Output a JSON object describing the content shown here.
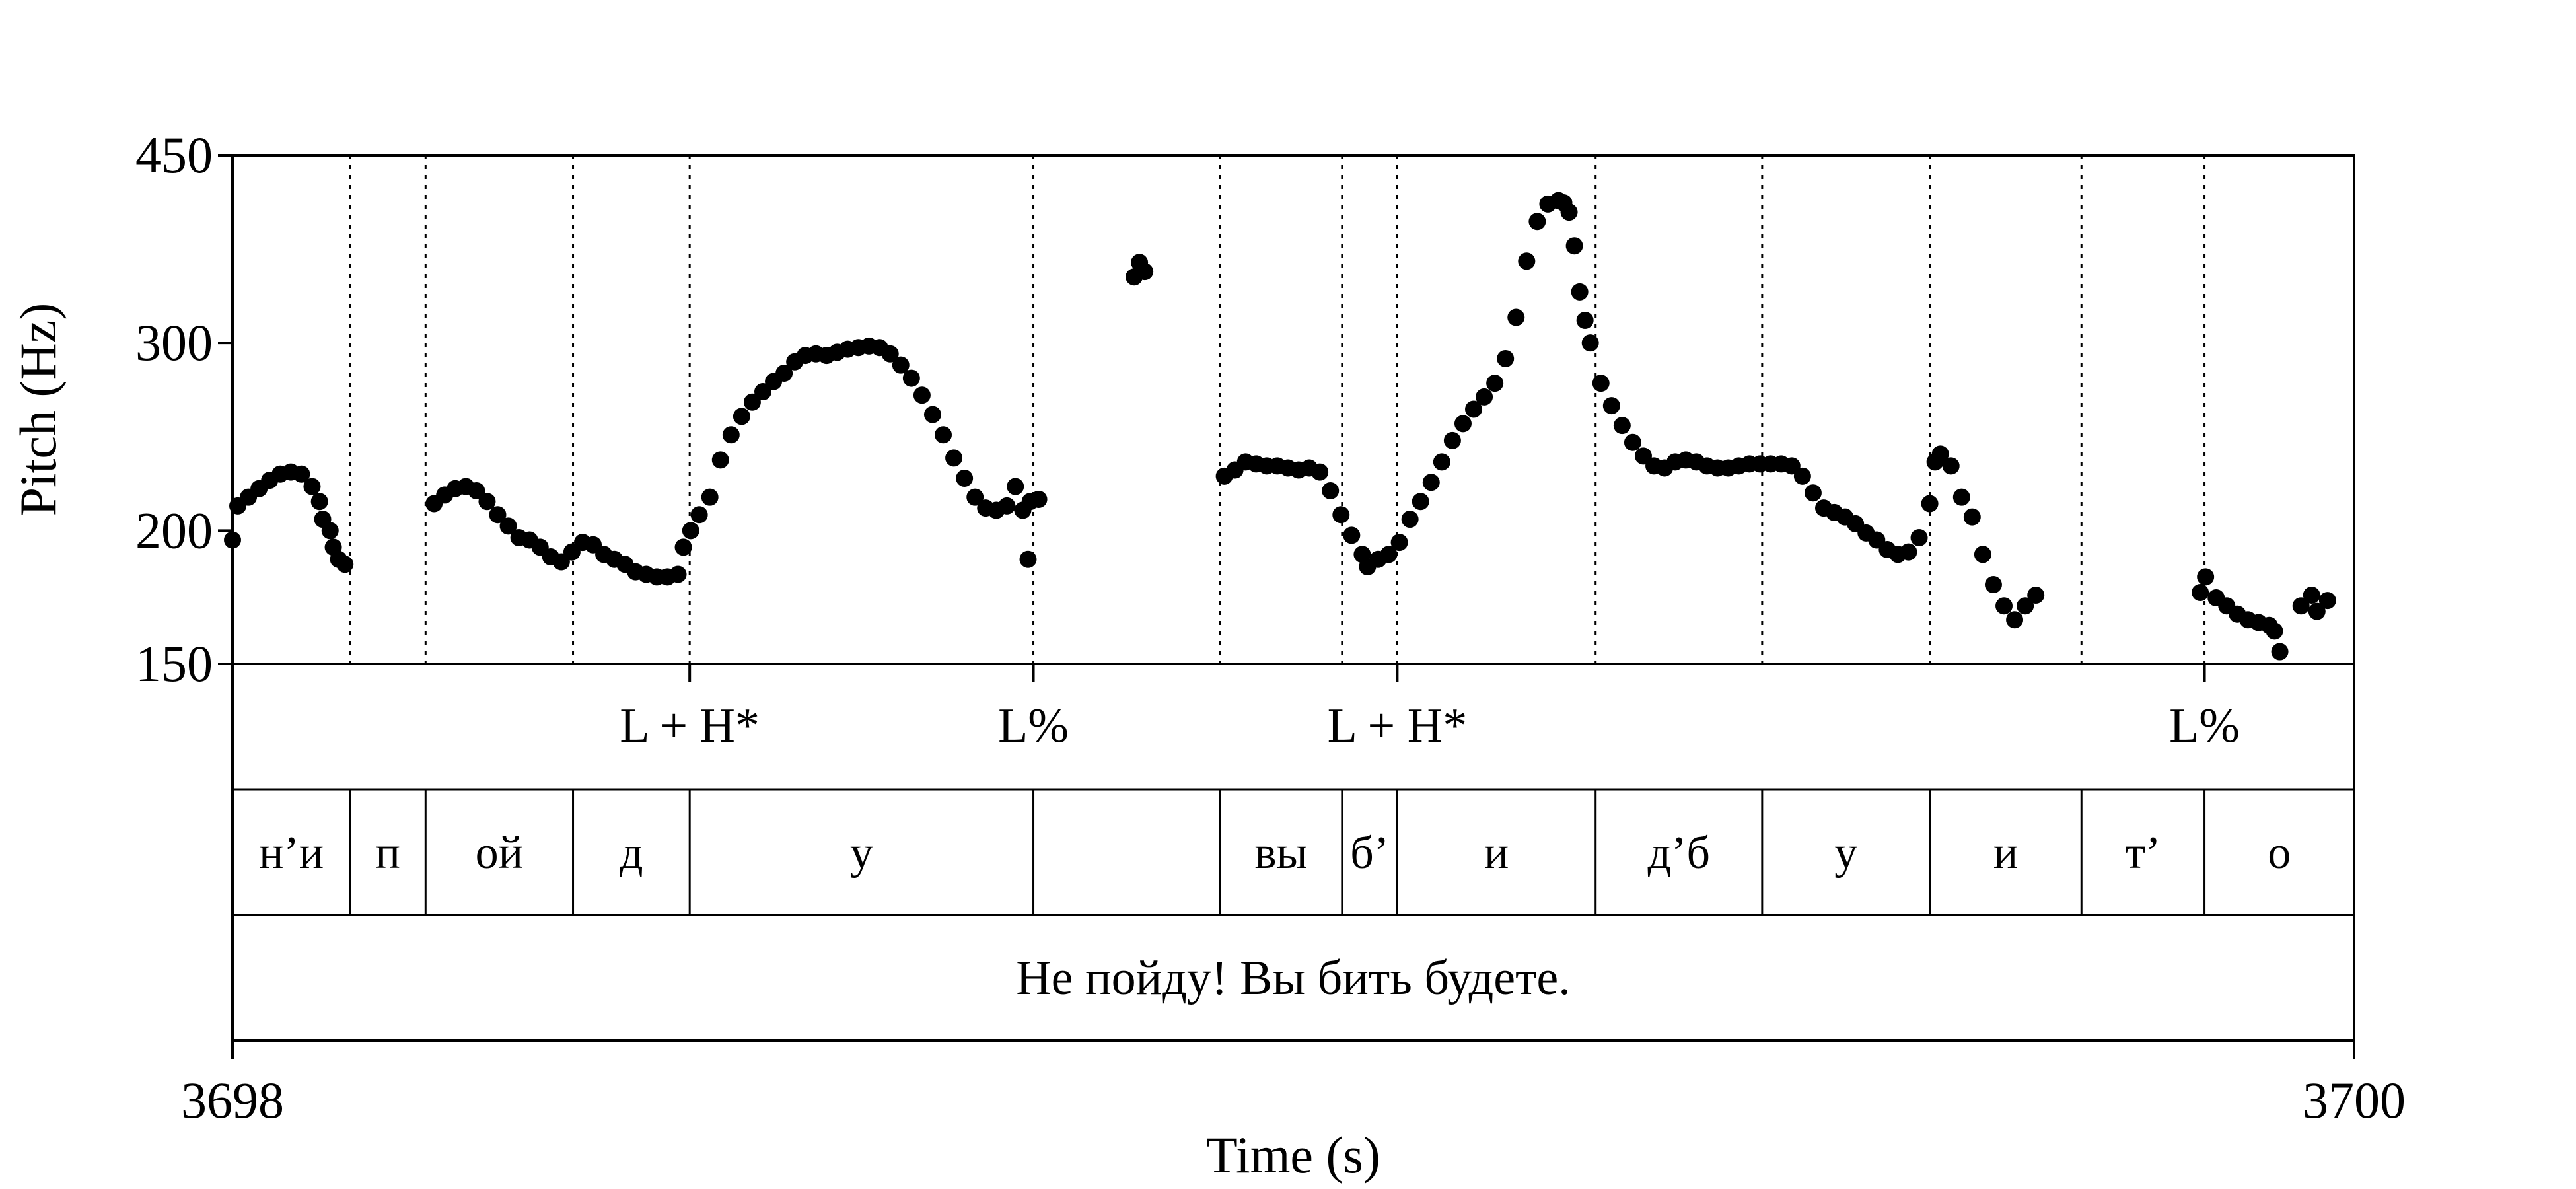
{
  "chart_data": {
    "type": "scatter",
    "xlabel": "Time (s)",
    "ylabel": "Pitch (Hz)",
    "xlim": [
      3698,
      3700
    ],
    "ylim": [
      150,
      450
    ],
    "y_scale": "log",
    "x_ticks": [
      "3698",
      "3700"
    ],
    "y_ticks": [
      {
        "value": 150,
        "label": "150"
      },
      {
        "value": 200,
        "label": "200"
      },
      {
        "value": 300,
        "label": "300"
      },
      {
        "value": 450,
        "label": "450"
      }
    ],
    "marker_color": "#000000",
    "segment_boundaries": [
      3698.111,
      3698.182,
      3698.321,
      3698.431,
      3698.755,
      3698.931,
      3699.046,
      3699.098,
      3699.285,
      3699.442,
      3699.6,
      3699.743,
      3699.859
    ],
    "tones": [
      {
        "t": 3698.431,
        "label": "L + H*"
      },
      {
        "t": 3698.755,
        "label": "L%"
      },
      {
        "t": 3699.098,
        "label": "L + H*"
      },
      {
        "t": 3699.859,
        "label": "L%"
      }
    ],
    "segments": [
      {
        "start": 3698.0,
        "end": 3698.111,
        "label": "н’и"
      },
      {
        "start": 3698.111,
        "end": 3698.182,
        "label": "п"
      },
      {
        "start": 3698.182,
        "end": 3698.321,
        "label": "ой"
      },
      {
        "start": 3698.321,
        "end": 3698.431,
        "label": "д"
      },
      {
        "start": 3698.431,
        "end": 3698.755,
        "label": "у"
      },
      {
        "start": 3698.755,
        "end": 3698.931,
        "label": ""
      },
      {
        "start": 3698.931,
        "end": 3699.046,
        "label": "вы"
      },
      {
        "start": 3699.046,
        "end": 3699.098,
        "label": "б’"
      },
      {
        "start": 3699.098,
        "end": 3699.285,
        "label": "и"
      },
      {
        "start": 3699.285,
        "end": 3699.442,
        "label": "д’б"
      },
      {
        "start": 3699.442,
        "end": 3699.6,
        "label": "у"
      },
      {
        "start": 3699.6,
        "end": 3699.743,
        "label": "и"
      },
      {
        "start": 3699.743,
        "end": 3699.859,
        "label": "т’"
      },
      {
        "start": 3699.859,
        "end": 3700.0,
        "label": "о"
      }
    ],
    "sentence": "Не пойду! Вы бить будете.",
    "contours": [
      [
        [
          3698.0,
          196
        ],
        [
          3698.005,
          211
        ],
        [
          3698.015,
          215
        ],
        [
          3698.025,
          219
        ],
        [
          3698.035,
          223
        ],
        [
          3698.045,
          226
        ],
        [
          3698.055,
          227
        ],
        [
          3698.065,
          226
        ],
        [
          3698.075,
          220
        ],
        [
          3698.082,
          213
        ],
        [
          3698.085,
          205
        ],
        [
          3698.092,
          200
        ],
        [
          3698.095,
          193
        ],
        [
          3698.1,
          188
        ],
        [
          3698.106,
          186
        ]
      ],
      [
        [
          3698.19,
          212
        ],
        [
          3698.2,
          216
        ],
        [
          3698.21,
          219
        ],
        [
          3698.22,
          220
        ],
        [
          3698.23,
          218
        ],
        [
          3698.24,
          213
        ],
        [
          3698.25,
          207
        ],
        [
          3698.26,
          202
        ],
        [
          3698.27,
          197
        ],
        [
          3698.28,
          196
        ],
        [
          3698.29,
          193
        ],
        [
          3698.3,
          189
        ],
        [
          3698.31,
          187
        ],
        [
          3698.32,
          191
        ],
        [
          3698.33,
          195
        ],
        [
          3698.34,
          194
        ],
        [
          3698.35,
          190
        ],
        [
          3698.36,
          188
        ],
        [
          3698.37,
          186
        ],
        [
          3698.38,
          183
        ],
        [
          3698.39,
          182
        ],
        [
          3698.4,
          181
        ],
        [
          3698.41,
          181
        ],
        [
          3698.42,
          182
        ]
      ],
      [
        [
          3698.425,
          193
        ],
        [
          3698.432,
          200
        ],
        [
          3698.44,
          207
        ],
        [
          3698.45,
          215
        ],
        [
          3698.46,
          233
        ],
        [
          3698.47,
          246
        ],
        [
          3698.48,
          256
        ],
        [
          3698.49,
          264
        ],
        [
          3698.5,
          270
        ],
        [
          3698.51,
          276
        ],
        [
          3698.52,
          281
        ],
        [
          3698.53,
          288
        ],
        [
          3698.54,
          292
        ],
        [
          3698.55,
          293
        ],
        [
          3698.56,
          292
        ],
        [
          3698.57,
          294
        ],
        [
          3698.58,
          296
        ],
        [
          3698.59,
          297
        ],
        [
          3698.6,
          298
        ],
        [
          3698.61,
          297
        ],
        [
          3698.62,
          293
        ],
        [
          3698.63,
          286
        ],
        [
          3698.64,
          278
        ],
        [
          3698.65,
          268
        ],
        [
          3698.66,
          257
        ],
        [
          3698.67,
          246
        ],
        [
          3698.68,
          234
        ],
        [
          3698.69,
          224
        ],
        [
          3698.7,
          215
        ],
        [
          3698.71,
          210
        ],
        [
          3698.72,
          209
        ],
        [
          3698.73,
          211
        ],
        [
          3698.738,
          220
        ],
        [
          3698.745,
          209
        ],
        [
          3698.752,
          213
        ],
        [
          3698.76,
          214
        ]
      ],
      [
        [
          3698.75,
          188
        ]
      ],
      [
        [
          3698.85,
          346
        ],
        [
          3698.855,
          357
        ],
        [
          3698.86,
          350
        ]
      ],
      [
        [
          3698.935,
          225
        ],
        [
          3698.945,
          228
        ],
        [
          3698.955,
          232
        ],
        [
          3698.965,
          231
        ],
        [
          3698.975,
          230
        ],
        [
          3698.985,
          230
        ],
        [
          3698.995,
          229
        ],
        [
          3699.005,
          228
        ],
        [
          3699.015,
          229
        ],
        [
          3699.025,
          227
        ],
        [
          3699.035,
          218
        ],
        [
          3699.045,
          207
        ],
        [
          3699.055,
          198
        ],
        [
          3699.065,
          190
        ],
        [
          3699.07,
          185
        ],
        [
          3699.08,
          188
        ],
        [
          3699.09,
          190
        ],
        [
          3699.1,
          195
        ],
        [
          3699.11,
          205
        ],
        [
          3699.12,
          213
        ],
        [
          3699.13,
          222
        ],
        [
          3699.14,
          232
        ],
        [
          3699.15,
          243
        ],
        [
          3699.16,
          252
        ],
        [
          3699.17,
          260
        ],
        [
          3699.18,
          267
        ],
        [
          3699.19,
          275
        ],
        [
          3699.2,
          290
        ],
        [
          3699.21,
          317
        ],
        [
          3699.22,
          358
        ],
        [
          3699.23,
          390
        ],
        [
          3699.24,
          405
        ],
        [
          3699.25,
          408
        ],
        [
          3699.255,
          406
        ],
        [
          3699.26,
          398
        ],
        [
          3699.265,
          370
        ],
        [
          3699.27,
          335
        ],
        [
          3699.275,
          315
        ],
        [
          3699.28,
          300
        ],
        [
          3699.29,
          275
        ],
        [
          3699.3,
          262
        ],
        [
          3699.31,
          251
        ],
        [
          3699.32,
          242
        ],
        [
          3699.33,
          235
        ],
        [
          3699.34,
          230
        ],
        [
          3699.35,
          229
        ],
        [
          3699.36,
          232
        ],
        [
          3699.37,
          233
        ],
        [
          3699.38,
          232
        ],
        [
          3699.39,
          230
        ],
        [
          3699.4,
          229
        ],
        [
          3699.41,
          229
        ],
        [
          3699.42,
          230
        ],
        [
          3699.43,
          231
        ],
        [
          3699.44,
          231
        ],
        [
          3699.45,
          231
        ],
        [
          3699.46,
          231
        ],
        [
          3699.47,
          230
        ],
        [
          3699.48,
          225
        ],
        [
          3699.49,
          217
        ],
        [
          3699.5,
          210
        ],
        [
          3699.51,
          208
        ],
        [
          3699.52,
          206
        ],
        [
          3699.53,
          203
        ],
        [
          3699.54,
          199
        ],
        [
          3699.55,
          196
        ],
        [
          3699.56,
          192
        ],
        [
          3699.57,
          190
        ],
        [
          3699.58,
          191
        ],
        [
          3699.59,
          197
        ],
        [
          3699.6,
          212
        ],
        [
          3699.605,
          232
        ],
        [
          3699.61,
          236
        ],
        [
          3699.62,
          230
        ],
        [
          3699.63,
          215
        ],
        [
          3699.64,
          206
        ],
        [
          3699.65,
          190
        ],
        [
          3699.66,
          178
        ],
        [
          3699.67,
          170
        ],
        [
          3699.68,
          165
        ],
        [
          3699.69,
          170
        ],
        [
          3699.7,
          174
        ]
      ],
      [
        [
          3699.855,
          175
        ],
        [
          3699.86,
          181
        ],
        [
          3699.87,
          173
        ],
        [
          3699.88,
          170
        ],
        [
          3699.89,
          167
        ],
        [
          3699.9,
          165
        ],
        [
          3699.91,
          164
        ],
        [
          3699.92,
          163
        ],
        [
          3699.925,
          161
        ],
        [
          3699.93,
          154
        ],
        [
          3699.95,
          170
        ],
        [
          3699.96,
          174
        ],
        [
          3699.965,
          168
        ],
        [
          3699.975,
          172
        ]
      ]
    ]
  }
}
